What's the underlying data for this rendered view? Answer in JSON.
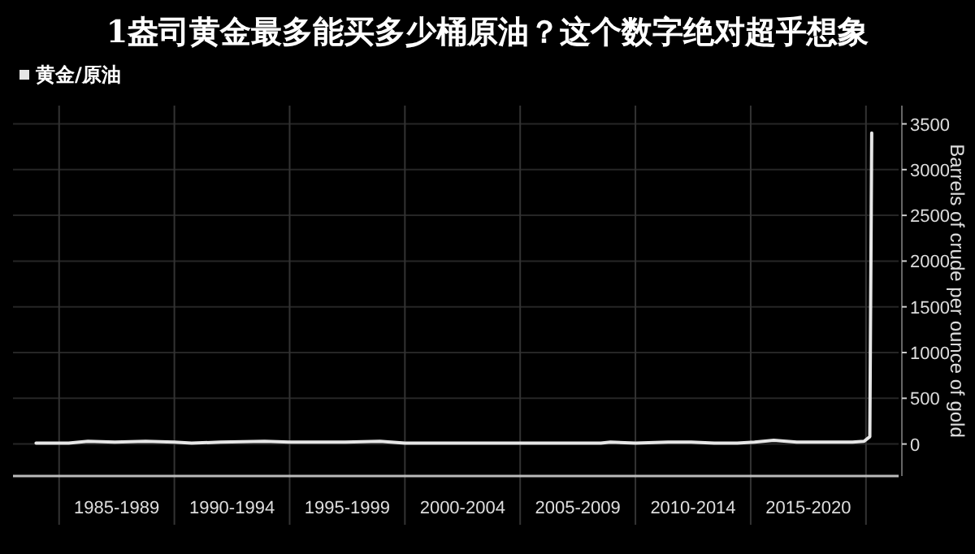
{
  "chart_data": {
    "type": "line",
    "title": "1盎司黄金最多能买多少桶原油？这个数字绝对超乎想象",
    "ylabel": "Barrels of crude per ounce of gold",
    "x": [
      "1984-01",
      "1985-06",
      "1986-04",
      "1987-06",
      "1988-10",
      "1990-01",
      "1990-10",
      "1992-01",
      "1993-12",
      "1995-01",
      "1996-04",
      "1997-06",
      "1998-12",
      "2000-01",
      "2000-11",
      "2002-01",
      "2003-03",
      "2004-06",
      "2005-09",
      "2007-01",
      "2008-07",
      "2008-12",
      "2010-01",
      "2011-06",
      "2012-06",
      "2013-06",
      "2014-06",
      "2015-03",
      "2016-01",
      "2017-01",
      "2018-10",
      "2019-06",
      "2019-12",
      "2020-03",
      "2020-04"
    ],
    "series": [
      {
        "name": "黄金/原油",
        "color": "#e6e6e6",
        "values": [
          10,
          10,
          30,
          20,
          30,
          20,
          10,
          20,
          30,
          20,
          20,
          20,
          30,
          10,
          10,
          10,
          10,
          10,
          10,
          10,
          10,
          20,
          10,
          20,
          20,
          10,
          10,
          20,
          40,
          20,
          20,
          20,
          30,
          80,
          3400
        ]
      }
    ],
    "xlim": [
      "1983-01",
      "2021-06"
    ],
    "xticks": [
      {
        "value": "1985-01",
        "label": null
      },
      {
        "value": "1987-07",
        "label": "1985-1989"
      },
      {
        "value": "1990-01",
        "label": null
      },
      {
        "value": "1992-07",
        "label": "1990-1994"
      },
      {
        "value": "1995-01",
        "label": null
      },
      {
        "value": "1997-07",
        "label": "1995-1999"
      },
      {
        "value": "2000-01",
        "label": null
      },
      {
        "value": "2002-07",
        "label": "2000-2004"
      },
      {
        "value": "2005-01",
        "label": null
      },
      {
        "value": "2007-07",
        "label": "2005-2009"
      },
      {
        "value": "2010-01",
        "label": null
      },
      {
        "value": "2012-07",
        "label": "2010-2014"
      },
      {
        "value": "2015-01",
        "label": null
      },
      {
        "value": "2017-07",
        "label": "2015-2020"
      },
      {
        "value": "2020-01",
        "label": null
      }
    ],
    "ylim": [
      -350,
      3700
    ],
    "yticks": [
      0,
      500,
      1000,
      1500,
      2000,
      2500,
      3000,
      3500
    ],
    "grid": true,
    "legend": "top left",
    "marker": "none",
    "line_style": "solid"
  }
}
